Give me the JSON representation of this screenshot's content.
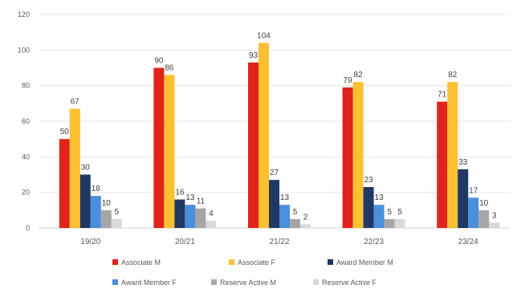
{
  "chart_data": {
    "type": "bar",
    "categories": [
      "19/20",
      "20/21",
      "21/22",
      "22/23",
      "23/24"
    ],
    "series": [
      {
        "name": "Associate M",
        "color": "#e2231a",
        "values": [
          50,
          90,
          93,
          79,
          71
        ]
      },
      {
        "name": "Associate F",
        "color": "#fcc030",
        "values": [
          67,
          86,
          104,
          82,
          82
        ]
      },
      {
        "name": "Award Member M",
        "color": "#1f3864",
        "values": [
          30,
          16,
          27,
          23,
          33
        ]
      },
      {
        "name": "Award Member F",
        "color": "#4a8fdc",
        "values": [
          18,
          13,
          13,
          13,
          17
        ]
      },
      {
        "name": "Reserve Active M",
        "color": "#a6a6a6",
        "values": [
          10,
          11,
          5,
          5,
          10
        ]
      },
      {
        "name": "Reserve Active F",
        "color": "#d9d9d9",
        "values": [
          5,
          4,
          2,
          5,
          3
        ]
      }
    ],
    "ylim": [
      0,
      120
    ],
    "yticks": [
      0,
      20,
      40,
      60,
      80,
      100,
      120
    ],
    "grid": true,
    "legend_position": "bottom",
    "show_data_labels": true
  }
}
